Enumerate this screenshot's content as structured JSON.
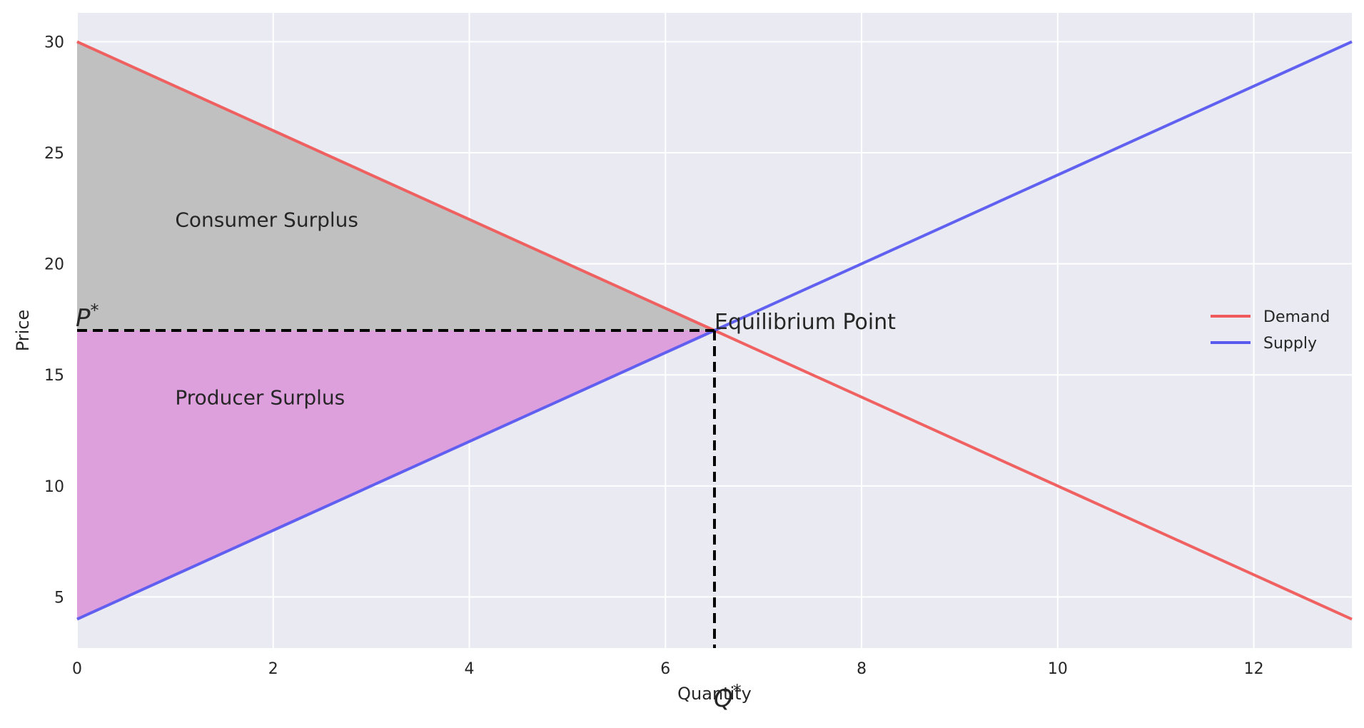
{
  "chart_data": {
    "type": "line",
    "title": "",
    "xlabel": "Quantity",
    "ylabel": "Price",
    "xlim": [
      0,
      13
    ],
    "ylim": [
      2.7,
      31.3
    ],
    "xticks": [
      0,
      2,
      4,
      6,
      8,
      10,
      12
    ],
    "yticks": [
      5,
      10,
      15,
      20,
      25,
      30
    ],
    "grid": true,
    "legend_position": "center-right",
    "series": [
      {
        "name": "Demand",
        "color": "#f05a5a",
        "points": [
          [
            0,
            30
          ],
          [
            13,
            4
          ]
        ]
      },
      {
        "name": "Supply",
        "color": "#5a5af0",
        "points": [
          [
            0,
            4
          ],
          [
            13,
            30
          ]
        ]
      }
    ],
    "equilibrium": {
      "q": 6.5,
      "p": 17,
      "label": "Equilibrium Point",
      "q_label": "Q*",
      "p_label": "P*"
    },
    "regions": [
      {
        "label": "Consumer Surplus",
        "color": "#c0c0c0",
        "label_at": [
          1,
          22
        ],
        "polygon": [
          [
            0,
            30
          ],
          [
            6.5,
            17
          ],
          [
            0,
            17
          ]
        ]
      },
      {
        "label": "Producer Surplus",
        "color": "#dda0dd",
        "label_at": [
          1,
          14
        ],
        "polygon": [
          [
            0,
            17
          ],
          [
            6.5,
            17
          ],
          [
            0,
            4
          ]
        ]
      }
    ],
    "colors": {
      "background": "#eaeaf2",
      "grid": "#ffffff",
      "dashed": "#000000"
    }
  }
}
